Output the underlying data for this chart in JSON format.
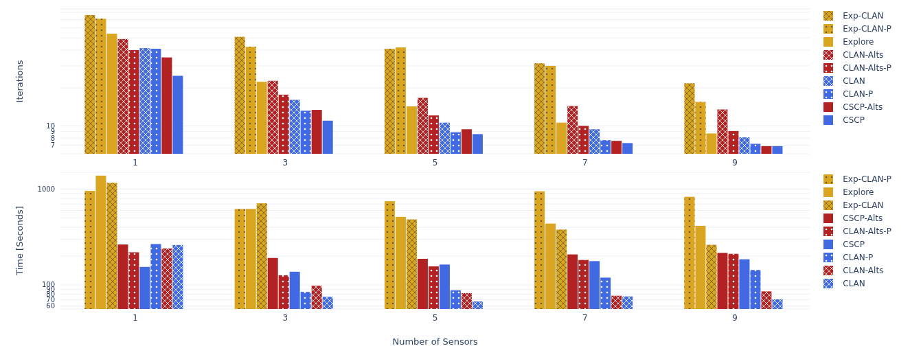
{
  "chart_data": [
    {
      "type": "bar",
      "ylabel": "Iterations",
      "categories": [
        "1",
        "3",
        "5",
        "7",
        "9"
      ],
      "log": "y",
      "grid": "y",
      "legend": "top right",
      "ylim": [
        6,
        85
      ],
      "yticks": [
        7,
        8,
        9,
        10,
        {
          "value": 20,
          "label": null
        },
        {
          "value": 30,
          "label": null
        },
        {
          "value": 40,
          "label": null
        },
        {
          "value": 50,
          "label": null
        },
        {
          "value": 60,
          "label": null
        },
        {
          "value": 70,
          "label": null
        },
        {
          "value": 80,
          "label": null
        }
      ],
      "series": [
        {
          "name": "Exp-CLAN",
          "color": "#daa520",
          "marker": "cross",
          "values": [
            76,
            51,
            41,
            31.4,
            21.8
          ]
        },
        {
          "name": "Exp-CLAN-P",
          "color": "#daa520",
          "marker": "circle",
          "values": [
            71,
            42.5,
            42,
            30,
            15.5
          ]
        },
        {
          "name": "Explore",
          "color": "#daa520",
          "values": [
            54,
            22.4,
            14.3,
            10.6,
            8.7
          ]
        },
        {
          "name": "CLAN-Alts",
          "color": "#b22222",
          "marker": "cross",
          "values": [
            49,
            22.8,
            16.7,
            14.4,
            13.5
          ]
        },
        {
          "name": "CLAN-Alts-P",
          "color": "#b22222",
          "marker": "circle",
          "values": [
            40,
            17.7,
            12.1,
            10,
            9.1
          ]
        },
        {
          "name": "CLAN",
          "color": "#4169e1",
          "marker": "cross",
          "values": [
            41.5,
            16.1,
            10.6,
            9.4,
            8.1
          ]
        },
        {
          "name": "CLAN-P",
          "color": "#4169e1",
          "marker": "circle",
          "values": [
            41,
            13.2,
            8.9,
            7.7,
            7.2
          ]
        },
        {
          "name": "CSCP-Alts",
          "color": "#b22222",
          "values": [
            35,
            13.4,
            9.4,
            7.6,
            6.9
          ]
        },
        {
          "name": "CSCP",
          "color": "#4169e1",
          "values": [
            25,
            11,
            8.6,
            7.3,
            6.9
          ]
        }
      ]
    },
    {
      "type": "bar",
      "xlabel": "Number of Sensors",
      "ylabel": "Time [Seconds]",
      "categories": [
        "1",
        "3",
        "5",
        "7",
        "9"
      ],
      "log": "y",
      "grid": "y",
      "legend": "top right",
      "ylim": [
        56,
        1500
      ],
      "yticks": [
        60,
        70,
        80,
        90,
        100,
        {
          "value": 200,
          "label": null
        },
        {
          "value": 300,
          "label": null
        },
        {
          "value": 400,
          "label": null
        },
        {
          "value": 500,
          "label": null
        },
        {
          "value": 600,
          "label": null
        },
        {
          "value": 700,
          "label": null
        },
        {
          "value": 800,
          "label": null
        },
        {
          "value": 900,
          "label": null
        },
        1000
      ],
      "series": [
        {
          "name": "Exp-CLAN-P",
          "color": "#daa520",
          "marker": "circle",
          "values": [
            959,
            621,
            748,
            950,
            832
          ]
        },
        {
          "name": "Explore",
          "color": "#daa520",
          "values": [
            1386,
            622,
            514,
            437,
            414
          ]
        },
        {
          "name": "Exp-CLAN",
          "color": "#daa520",
          "marker": "cross",
          "values": [
            1164,
            711,
            483,
            378,
            262
          ]
        },
        {
          "name": "CSCP-Alts",
          "color": "#b22222",
          "values": [
            264,
            191,
            187,
            208,
            216
          ]
        },
        {
          "name": "CLAN-Alts-P",
          "color": "#b22222",
          "marker": "circle",
          "values": [
            219,
            126,
            156,
            182,
            211
          ]
        },
        {
          "name": "CSCP",
          "color": "#4169e1",
          "values": [
            154,
            137,
            163,
            177,
            185
          ]
        },
        {
          "name": "CLAN-P",
          "color": "#4169e1",
          "marker": "circle",
          "values": [
            267,
            84.5,
            87.7,
            119,
            143
          ]
        },
        {
          "name": "CLAN-Alts",
          "color": "#b22222",
          "marker": "cross",
          "values": [
            240,
            98,
            82,
            77,
            85.5
          ]
        },
        {
          "name": "CLAN",
          "color": "#4169e1",
          "marker": "cross",
          "values": [
            261,
            75,
            67,
            75.7,
            70.6
          ]
        }
      ]
    }
  ]
}
